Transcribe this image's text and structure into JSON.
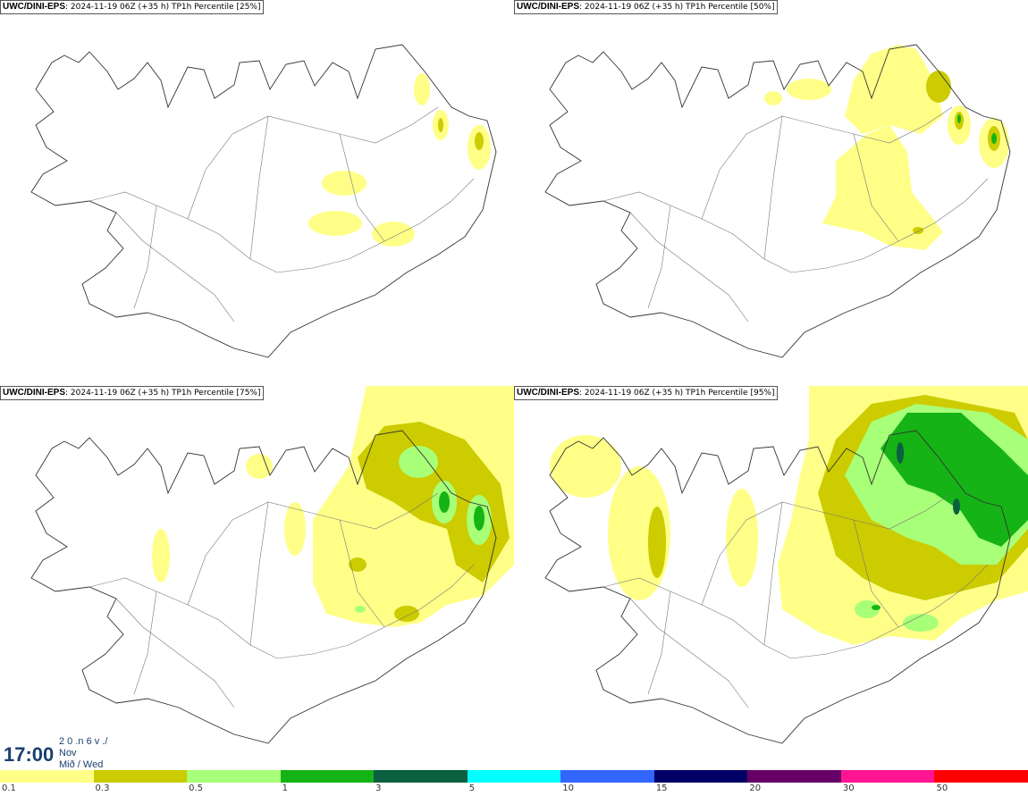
{
  "panels": [
    {
      "model": "UWC/DINI-EPS",
      "meta": ": 2024-11-19 06Z (+35 h) TP1h Percentile [25%]"
    },
    {
      "model": "UWC/DINI-EPS",
      "meta": ": 2024-11-19 06Z (+35 h) TP1h Percentile [50%]"
    },
    {
      "model": "UWC/DINI-EPS",
      "meta": ": 2024-11-19 06Z (+35 h) TP1h Percentile [75%]"
    },
    {
      "model": "UWC/DINI-EPS",
      "meta": ": 2024-11-19 06Z (+35 h) TP1h Percentile [95%]"
    }
  ],
  "time": {
    "clock": "17:00",
    "line1": "2 0 .n 6 v ./",
    "line2": "Nov",
    "line3": "Mið / Wed"
  },
  "legend": {
    "colors": [
      "#ffff88",
      "#cccc00",
      "#a8ff78",
      "#15b315",
      "#0a6040",
      "#00ffff",
      "#3366ff",
      "#000066",
      "#660066",
      "#ff1493",
      "#ff0000"
    ],
    "ticks": [
      "0.1",
      "0.3",
      "0.5",
      "1",
      "3",
      "5",
      "10",
      "15",
      "20",
      "30",
      "50"
    ]
  }
}
